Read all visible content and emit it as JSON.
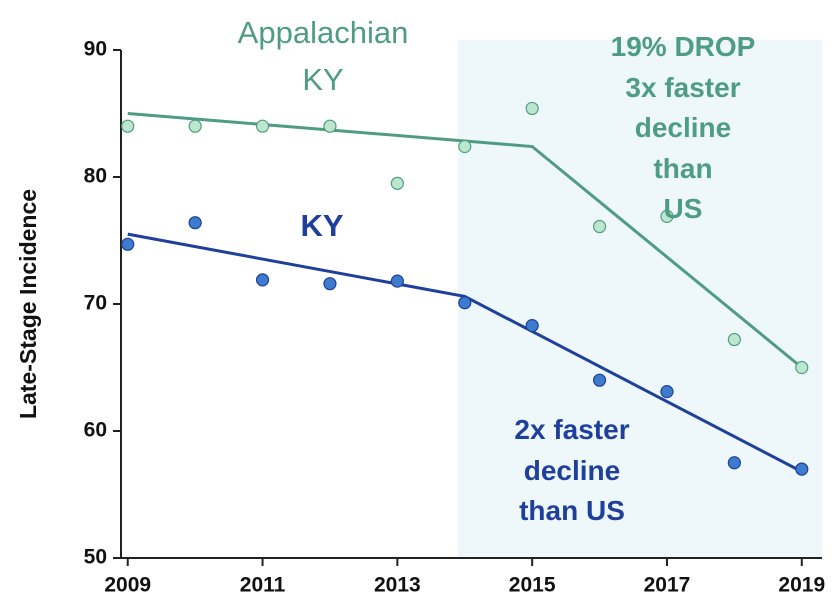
{
  "chart_data": {
    "type": "scatter",
    "y_label": "Late-Stage Incidence",
    "xlim": [
      2008.9,
      2019.3
    ],
    "xticks": [
      2009,
      2011,
      2013,
      2015,
      2017,
      2019
    ],
    "ylim": [
      50,
      90
    ],
    "yticks": [
      50,
      60,
      70,
      80,
      90
    ],
    "shaded_xrange": [
      2013.9,
      2019.3
    ],
    "shade_color": "#eef8fa",
    "x": [
      2009,
      2010,
      2011,
      2012,
      2013,
      2014,
      2015,
      2016,
      2017,
      2018,
      2019
    ],
    "series": [
      {
        "name": "Appalachian\nKY",
        "color": "#4f9c84",
        "point_color": "#bde6cf",
        "values": [
          84.0,
          84.0,
          84.0,
          84.0,
          79.5,
          82.4,
          85.4,
          76.1,
          76.9,
          67.2,
          65.0
        ],
        "trend": {
          "x": [
            2009,
            2015,
            2019
          ],
          "values": [
            85.0,
            82.4,
            65.0
          ]
        }
      },
      {
        "name": "KY",
        "color": "#1f3f9c",
        "point_color": "#3d7bcc",
        "values": [
          74.7,
          76.4,
          71.9,
          71.6,
          71.8,
          70.1,
          68.3,
          64.0,
          63.1,
          57.5,
          57.0
        ],
        "trend": {
          "x": [
            2009,
            2014,
            2019
          ],
          "values": [
            75.5,
            70.6,
            56.8
          ]
        }
      }
    ],
    "annotations": [
      {
        "text": "19% DROP\n3x faster\ndecline than\nUS",
        "color": "#4f9c84"
      },
      {
        "text": "2x faster\ndecline\nthan US",
        "color": "#1f3f9c"
      }
    ]
  }
}
